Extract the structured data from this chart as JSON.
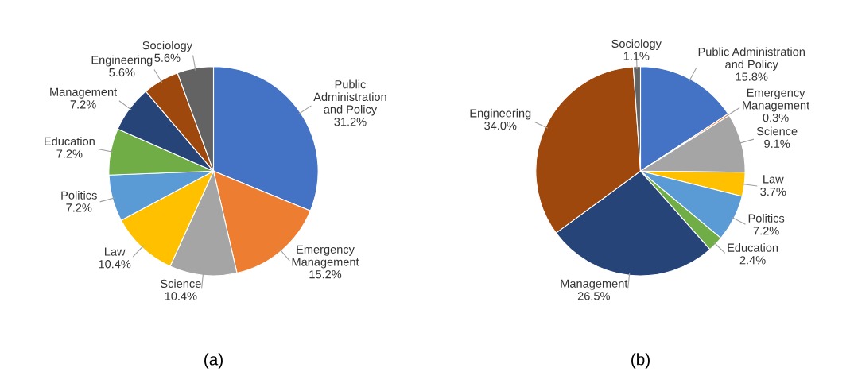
{
  "chart_data": [
    {
      "type": "pie",
      "title": "(a)",
      "legend": false,
      "categories": [
        "Public\nAdministration\nand Policy",
        "Emergency\nManagement",
        "Science",
        "Law",
        "Politics",
        "Education",
        "Management",
        "Engineering",
        "Sociology"
      ],
      "values": [
        31.2,
        15.2,
        10.4,
        10.4,
        7.2,
        7.2,
        7.2,
        5.6,
        5.6
      ],
      "value_labels": [
        "31.2%",
        "15.2%",
        "10.4%",
        "10.4%",
        "7.2%",
        "7.2%",
        "7.2%",
        "5.6%",
        "5.6%"
      ],
      "colors": [
        "#4472c4",
        "#ed7d31",
        "#a5a5a5",
        "#ffc000",
        "#5b9bd5",
        "#70ad47",
        "#264478",
        "#9e480e",
        "#636363"
      ]
    },
    {
      "type": "pie",
      "title": "(b)",
      "legend": false,
      "categories": [
        "Public Administration\nand Policy",
        "Emergency\nManagement",
        "Science",
        "Law",
        "Politics",
        "Education",
        "Management",
        "Engineering",
        "Sociology"
      ],
      "values": [
        15.8,
        0.3,
        9.1,
        3.7,
        7.2,
        2.4,
        26.5,
        34.0,
        1.1
      ],
      "value_labels": [
        "15.8%",
        "0.3%",
        "9.1%",
        "3.7%",
        "7.2%",
        "2.4%",
        "26.5%",
        "34.0%",
        "1.1%"
      ],
      "colors": [
        "#4472c4",
        "#ed7d31",
        "#a5a5a5",
        "#ffc000",
        "#5b9bd5",
        "#70ad47",
        "#264478",
        "#9e480e",
        "#636363"
      ]
    }
  ]
}
